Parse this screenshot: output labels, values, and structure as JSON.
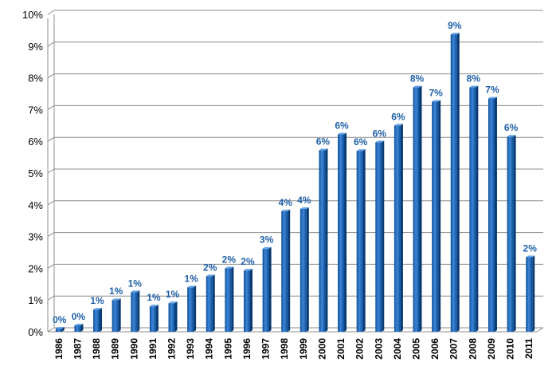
{
  "chart_data": {
    "type": "bar",
    "title": "",
    "xlabel": "",
    "ylabel": "",
    "ylim": [
      0,
      10
    ],
    "yticks": [
      "0%",
      "1%",
      "2%",
      "3%",
      "4%",
      "5%",
      "6%",
      "7%",
      "8%",
      "9%",
      "10%"
    ],
    "grid": true,
    "legend": "none",
    "bar_color": "#0b4f9a",
    "bar_highlight": "#3f86d6",
    "gridline_color": "#8c8c8c",
    "label_color": "#1f5fa8",
    "categories": [
      "1986",
      "1987",
      "1988",
      "1989",
      "1990",
      "1991",
      "1992",
      "1993",
      "1994",
      "1995",
      "1996",
      "1997",
      "1998",
      "1999",
      "2000",
      "2001",
      "2002",
      "2003",
      "2004",
      "2005",
      "2006",
      "2007",
      "2008",
      "2009",
      "2010",
      "2011"
    ],
    "values": [
      0.1,
      0.2,
      0.7,
      1.0,
      1.25,
      0.8,
      0.9,
      1.4,
      1.75,
      2.0,
      1.93,
      2.62,
      3.8,
      3.87,
      5.72,
      6.22,
      5.7,
      5.97,
      6.5,
      7.7,
      7.25,
      9.37,
      7.7,
      7.35,
      6.15,
      2.35
    ],
    "data_labels": [
      "0%",
      "0%",
      "1%",
      "1%",
      "1%",
      "1%",
      "1%",
      "1%",
      "2%",
      "2%",
      "2%",
      "3%",
      "4%",
      "4%",
      "6%",
      "6%",
      "6%",
      "6%",
      "6%",
      "8%",
      "7%",
      "9%",
      "8%",
      "7%",
      "6%",
      "2%"
    ]
  }
}
